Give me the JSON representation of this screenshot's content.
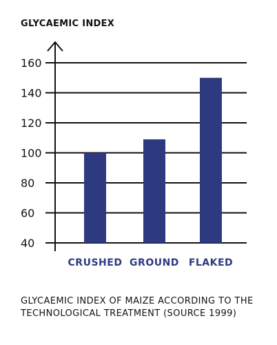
{
  "chart_data": {
    "type": "bar",
    "ylabel": "GLYCAEMIC INDEX",
    "xlabel": "",
    "categories": [
      "CRUSHED",
      "GROUND",
      "FLAKED"
    ],
    "values": [
      100,
      109,
      150
    ],
    "ylim": [
      40,
      160
    ],
    "yticks": [
      40,
      60,
      80,
      100,
      120,
      140,
      160
    ],
    "grid": "horizontal",
    "bar_color": "#2e3a80",
    "category_label_color": "#2e3a80",
    "caption": "GLYCAEMIC INDEX OF MAIZE ACCORDING TO THE TECHNOLOGICAL TREATMENT (SOURCE 1999)"
  }
}
